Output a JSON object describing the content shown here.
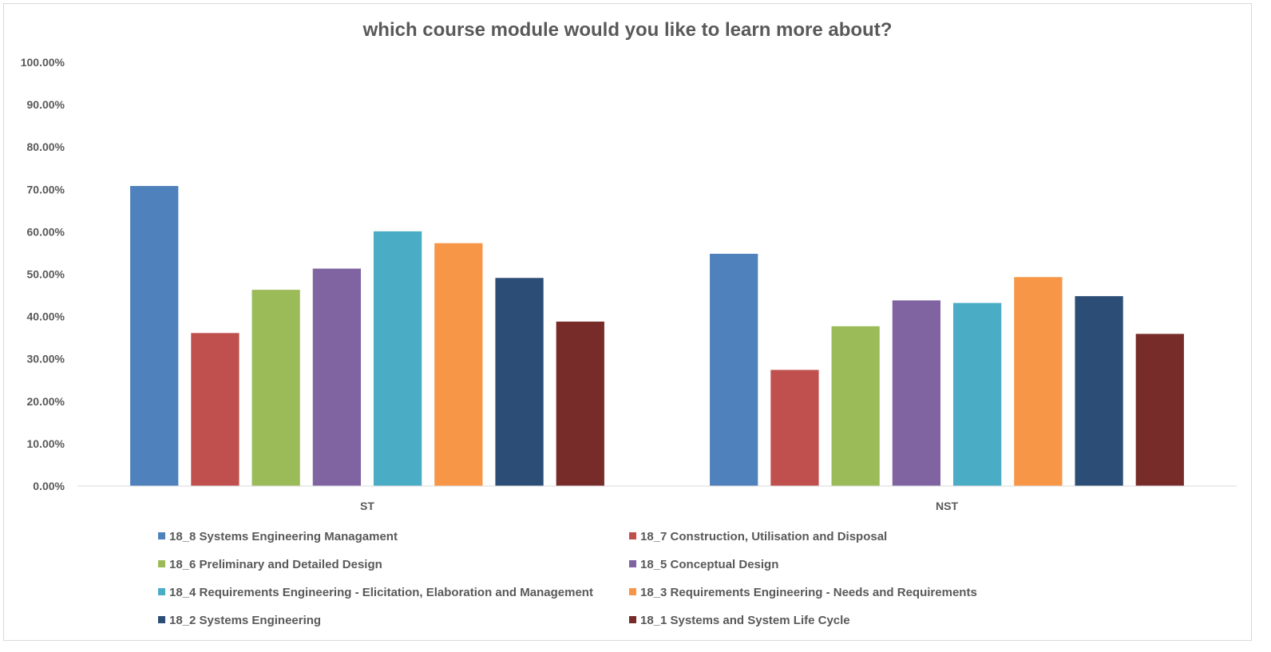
{
  "chart_data": {
    "type": "bar",
    "title": "which course module would you like to learn more about?",
    "xlabel": "",
    "ylabel": "",
    "categories": [
      "ST",
      "NST"
    ],
    "ylim": [
      0,
      1
    ],
    "yticks": [
      "0.00%",
      "10.00%",
      "20.00%",
      "30.00%",
      "40.00%",
      "50.00%",
      "60.00%",
      "70.00%",
      "80.00%",
      "90.00%",
      "100.00%"
    ],
    "grid": false,
    "legend_position": "bottom",
    "series": [
      {
        "name": "18_8 Systems Engineering Managament",
        "color": "#4f81bd",
        "values": [
          0.708,
          0.548
        ]
      },
      {
        "name": "18_7 Construction, Utilisation and Disposal",
        "color": "#c0504d",
        "values": [
          0.361,
          0.274
        ]
      },
      {
        "name": "18_6 Preliminary and Detailed Design",
        "color": "#9bbb59",
        "values": [
          0.463,
          0.377
        ]
      },
      {
        "name": "18_5 Conceptual Design",
        "color": "#8064a2",
        "values": [
          0.513,
          0.438
        ]
      },
      {
        "name": "18_4 Requirements Engineering - Elicitation, Elaboration and Management",
        "color": "#4bacc6",
        "values": [
          0.601,
          0.432
        ]
      },
      {
        "name": "18_3 Requirements Engineering - Needs and Requirements",
        "color": "#f79646",
        "values": [
          0.573,
          0.493
        ]
      },
      {
        "name": "18_2 Systems Engineering",
        "color": "#2c4d75",
        "values": [
          0.491,
          0.448
        ]
      },
      {
        "name": "18_1 Systems and System Life Cycle",
        "color": "#772c2a",
        "values": [
          0.388,
          0.359
        ]
      }
    ]
  }
}
